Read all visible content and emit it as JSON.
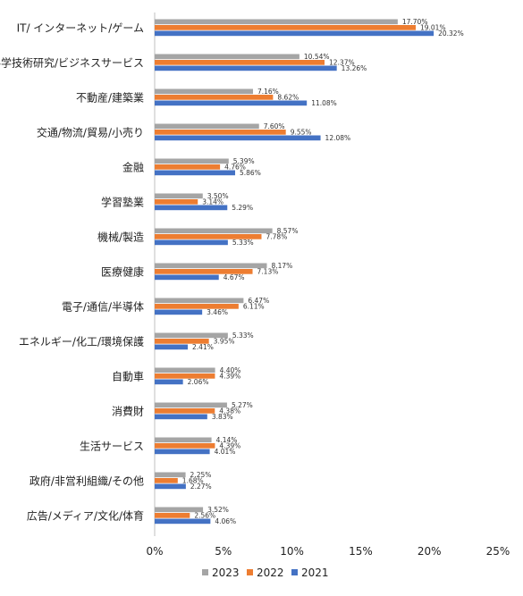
{
  "chart_data": {
    "type": "bar",
    "orientation": "horizontal",
    "categories": [
      "IT/ インターネット/ゲーム",
      "科学技術研究/ビジネスサービス",
      "不動産/建築業",
      "交通/物流/貿易/小売り",
      "金融",
      "学習塾業",
      "機械/製造",
      "医療健康",
      "電子/通信/半導体",
      "エネルギー/化工/環境保護",
      "自動車",
      "消費財",
      "生活サービス",
      "政府/非営利組織/その他",
      "広告/メディア/文化/体育"
    ],
    "series": [
      {
        "name": "2023",
        "color": "#a5a5a5",
        "values": [
          17.7,
          10.54,
          7.16,
          7.6,
          5.39,
          3.5,
          8.57,
          8.17,
          6.47,
          5.33,
          4.4,
          5.27,
          4.14,
          2.25,
          3.52
        ],
        "labels": [
          "17.70%",
          "10.54%",
          "7.16%",
          "7.60%",
          "5.39%",
          "3.50%",
          "8.57%",
          "8.17%",
          "6.47%",
          "5.33%",
          "4.40%",
          "5.27%",
          "4.14%",
          "2.25%",
          "3.52%"
        ]
      },
      {
        "name": "2022",
        "color": "#ed7d31",
        "values": [
          19.01,
          12.37,
          8.62,
          9.55,
          4.76,
          3.14,
          7.78,
          7.13,
          6.11,
          3.95,
          4.39,
          4.38,
          4.39,
          1.68,
          2.56
        ],
        "labels": [
          "19.01%",
          "12.37%",
          "8.62%",
          "9.55%",
          "4.76%",
          "3.14%",
          "7.78%",
          "7.13%",
          "6.11%",
          "3.95%",
          "4.39%",
          "4.38%",
          "4.39%",
          "1.68%",
          "2.56%"
        ]
      },
      {
        "name": "2021",
        "color": "#4472c4",
        "values": [
          20.32,
          13.26,
          11.08,
          12.08,
          5.86,
          5.29,
          5.33,
          4.67,
          3.46,
          2.41,
          2.06,
          3.83,
          4.01,
          2.27,
          4.06
        ],
        "labels": [
          "20.32%",
          "13.26%",
          "11.08%",
          "12.08%",
          "5.86%",
          "5.29%",
          "5.33%",
          "4.67%",
          "3.46%",
          "2.41%",
          "2.06%",
          "3.83%",
          "4.01%",
          "2.27%",
          "4.06%"
        ]
      }
    ],
    "x_ticks": [
      "0%",
      "5%",
      "10%",
      "15%",
      "20%",
      "25%"
    ],
    "xlim": [
      0,
      25
    ],
    "grid": false,
    "legend_position": "bottom",
    "title": "",
    "xlabel": "",
    "ylabel": ""
  }
}
